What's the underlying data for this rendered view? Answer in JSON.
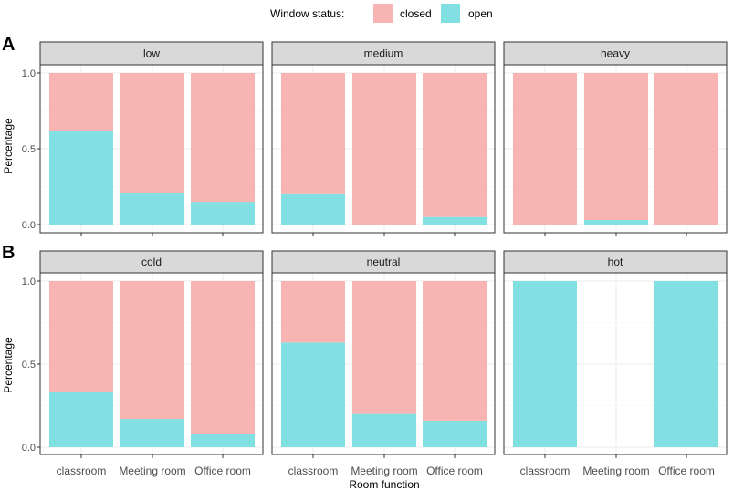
{
  "chart_data": {
    "type": "bar",
    "stacked": true,
    "legend": {
      "title": "Window status:",
      "entries": [
        {
          "label": "closed",
          "color": "#F8B4B2"
        },
        {
          "label": "open",
          "color": "#82DFE2"
        }
      ],
      "position": "top"
    },
    "xlabel": "Room function",
    "ylabel": "Percentage",
    "ylim": [
      0,
      1
    ],
    "yticks": [
      "0.0",
      "0.5",
      "1.0"
    ],
    "categories": [
      "classroom",
      "Meeting room",
      "Office room"
    ],
    "rows": [
      {
        "tag": "A",
        "panels": [
          {
            "title": "low",
            "open": [
              0.62,
              0.21,
              0.15
            ],
            "closed": [
              0.38,
              0.79,
              0.85
            ]
          },
          {
            "title": "medium",
            "open": [
              0.2,
              0.0,
              0.05
            ],
            "closed": [
              0.8,
              1.0,
              0.95
            ]
          },
          {
            "title": "heavy",
            "open": [
              0.0,
              0.03,
              0.0
            ],
            "closed": [
              1.0,
              0.97,
              1.0
            ]
          }
        ]
      },
      {
        "tag": "B",
        "panels": [
          {
            "title": "cold",
            "open": [
              0.33,
              0.17,
              0.08
            ],
            "closed": [
              0.67,
              0.83,
              0.92
            ]
          },
          {
            "title": "neutral",
            "open": [
              0.63,
              0.2,
              0.16
            ],
            "closed": [
              0.37,
              0.8,
              0.84
            ]
          },
          {
            "title": "hot",
            "open": [
              1.0,
              0.0,
              1.0
            ],
            "closed": [
              0.0,
              0.0,
              0.0
            ]
          }
        ]
      }
    ]
  }
}
